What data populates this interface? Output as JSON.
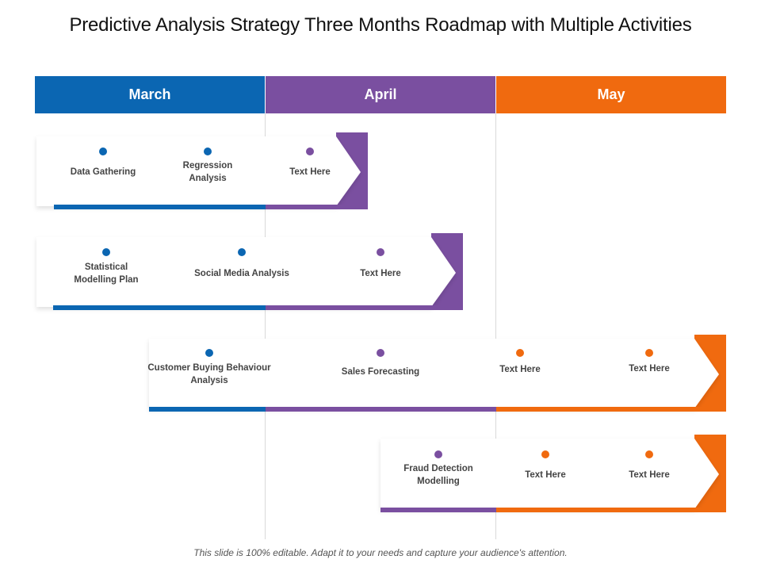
{
  "title": "Predictive Analysis Strategy Three Months Roadmap with Multiple Activities",
  "months": [
    {
      "label": "March",
      "color": "#0b66b2"
    },
    {
      "label": "April",
      "color": "#7a4fa0"
    },
    {
      "label": "May",
      "color": "#f06a0f"
    }
  ],
  "rows": [
    {
      "activities": [
        {
          "label": "Data Gathering",
          "color": "#0b66b2"
        },
        {
          "label": "Regression Analysis",
          "color": "#0b66b2"
        },
        {
          "label": "Text Here",
          "color": "#7a4fa0"
        }
      ]
    },
    {
      "activities": [
        {
          "label": "Statistical Modelling Plan",
          "color": "#0b66b2"
        },
        {
          "label": "Social Media Analysis",
          "color": "#0b66b2"
        },
        {
          "label": "Text Here",
          "color": "#7a4fa0"
        }
      ]
    },
    {
      "activities": [
        {
          "label": "Customer Buying Behaviour Analysis",
          "color": "#0b66b2"
        },
        {
          "label": "Sales Forecasting",
          "color": "#7a4fa0"
        },
        {
          "label": "Text Here",
          "color": "#f06a0f"
        },
        {
          "label": "Text Here",
          "color": "#f06a0f"
        }
      ]
    },
    {
      "activities": [
        {
          "label": "Fraud Detection Modelling",
          "color": "#7a4fa0"
        },
        {
          "label": "Text Here",
          "color": "#f06a0f"
        },
        {
          "label": "Text Here",
          "color": "#f06a0f"
        }
      ]
    }
  ],
  "footer": "This slide is 100% editable. Adapt it to your needs and capture your audience's attention."
}
